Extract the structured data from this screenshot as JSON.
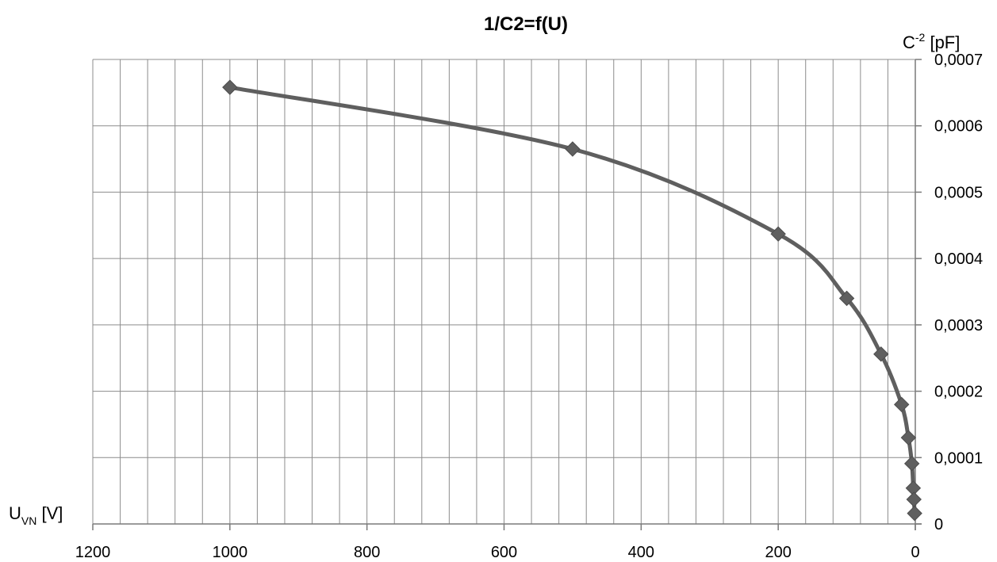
{
  "chart_data": {
    "type": "line",
    "title": "1/C2=f(U)",
    "xlabel": {
      "main": "U",
      "sub": "VN",
      "unit": " [V]"
    },
    "ylabel": {
      "main": "C",
      "sup": "-2",
      "unit": " [pF]"
    },
    "x_reversed": true,
    "xlim": [
      0,
      1200
    ],
    "ylim": [
      0,
      0.0007
    ],
    "x_major_ticks": [
      0,
      200,
      400,
      600,
      800,
      1000,
      1200
    ],
    "x_tick_labels": [
      "0",
      "200",
      "400",
      "600",
      "800",
      "1000",
      "1200"
    ],
    "x_minor_step": 40,
    "y_ticks": [
      0,
      0.0001,
      0.0002,
      0.0003,
      0.0004,
      0.0005,
      0.0006,
      0.0007
    ],
    "y_tick_labels": [
      "0",
      "0,0001",
      "0,0002",
      "0,0003",
      "0,0004",
      "0,0005",
      "0,0006",
      "0,0007"
    ],
    "grid": true,
    "line_color": "#5f5f5f",
    "marker": "diamond",
    "series": [
      {
        "x": [
          1000,
          500,
          200,
          100,
          50,
          20,
          10,
          5,
          3,
          2,
          1
        ],
        "y": [
          0.000658,
          0.000565,
          0.000437,
          0.00034,
          0.000256,
          0.00018,
          0.00013,
          9.1e-05,
          5.4e-05,
          3.7e-05,
          1.6e-05
        ]
      }
    ]
  }
}
